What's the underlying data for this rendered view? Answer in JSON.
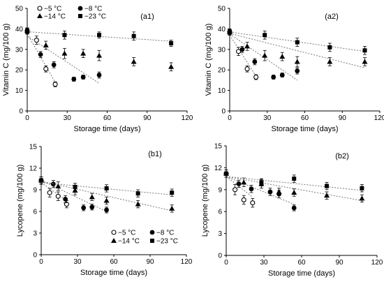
{
  "figure": {
    "panels": [
      {
        "label": "(a1)",
        "type": "scatter",
        "xlabel": "Storage time (days)",
        "ylabel": "Vitamin C (mg/100 g)",
        "xlim": [
          0,
          120
        ],
        "ylim": [
          0,
          50
        ],
        "xticks": [
          0,
          30,
          60,
          90,
          120
        ],
        "yticks": [
          0,
          10,
          20,
          30,
          40,
          50
        ],
        "show_legend": true,
        "legend_position": "top-left",
        "series": [
          {
            "name": "−5 °C",
            "marker": "open-circle",
            "x": [
              0,
              7,
              14,
              21
            ],
            "y": [
              39,
              34.5,
              20.5,
              13
            ],
            "err": [
              1.5,
              2,
              1.5,
              1.2
            ],
            "fit": [
              [
                0,
                37.6
              ],
              [
                21,
                14
              ]
            ]
          },
          {
            "name": "−8 °C",
            "marker": "filled-circle",
            "x": [
              0,
              10,
              20,
              35,
              42,
              54
            ],
            "y": [
              39,
              27.5,
              22.5,
              15.5,
              16.5,
              17.5
            ],
            "err": [
              1.2,
              1.5,
              1.5,
              1,
              1,
              1.5
            ],
            "fit": [
              [
                0,
                36.5
              ],
              [
                54,
                13.5
              ]
            ]
          },
          {
            "name": "−14 °C",
            "marker": "filled-triangle",
            "x": [
              0,
              14,
              28,
              42,
              54,
              80,
              108
            ],
            "y": [
              39,
              32,
              28,
              28,
              27,
              24,
              21.5
            ],
            "err": [
              1.5,
              2,
              2.5,
              2,
              2.5,
              2,
              2
            ]
          },
          {
            "name": "−23 °C",
            "marker": "filled-square",
            "x": [
              0,
              28,
              54,
              80,
              108
            ],
            "y": [
              39,
              37,
              37,
              36.5,
              33
            ],
            "err": [
              1.5,
              2,
              1.5,
              2,
              1.5
            ],
            "fit": [
              [
                0,
                38.6
              ],
              [
                108,
                34
              ]
            ]
          }
        ]
      },
      {
        "label": "(a2)",
        "type": "scatter",
        "xlabel": "Storage time (days)",
        "ylabel": "Vitamin C (mg/100 g)",
        "xlim": [
          0,
          120
        ],
        "ylim": [
          0,
          50
        ],
        "xticks": [
          0,
          30,
          60,
          90,
          120
        ],
        "yticks": [
          0,
          10,
          20,
          30,
          40,
          50
        ],
        "show_legend": false,
        "series": [
          {
            "name": "−5 °C",
            "marker": "open-circle",
            "x": [
              0,
              7,
              14,
              21
            ],
            "y": [
              38.5,
              29,
              20.5,
              16.5
            ],
            "err": [
              1.5,
              2,
              1.5,
              1.2
            ],
            "fit": [
              [
                0,
                37
              ],
              [
                21,
                17
              ]
            ]
          },
          {
            "name": "−8 °C",
            "marker": "filled-circle",
            "x": [
              0,
              10,
              20,
              35,
              42,
              54
            ],
            "y": [
              38.5,
              30,
              24,
              16.5,
              17.5,
              19.5
            ],
            "err": [
              1.2,
              1.5,
              1.5,
              1,
              1,
              1.5
            ],
            "fit": [
              [
                0,
                37.5
              ],
              [
                54,
                15
              ]
            ]
          },
          {
            "name": "−14 °C",
            "marker": "filled-triangle",
            "x": [
              0,
              14,
              28,
              42,
              54,
              80,
              108
            ],
            "y": [
              38.5,
              31.5,
              27,
              26.5,
              24,
              24,
              24
            ],
            "err": [
              1.5,
              2,
              2.5,
              2,
              2.5,
              2,
              2
            ],
            "fit": [
              [
                0,
                37.8
              ],
              [
                108,
                21
              ]
            ]
          },
          {
            "name": "−23 °C",
            "marker": "filled-square",
            "x": [
              0,
              28,
              54,
              80,
              108
            ],
            "y": [
              38.5,
              37,
              33.5,
              31,
              29.5
            ],
            "err": [
              1.5,
              2,
              2,
              2,
              2
            ],
            "fit": [
              [
                0,
                38.5
              ],
              [
                108,
                29
              ]
            ]
          }
        ]
      },
      {
        "label": "(b1)",
        "type": "scatter",
        "xlabel": "Storage time (days)",
        "ylabel": "Lycopene (mg/100 g)",
        "xlim": [
          0,
          120
        ],
        "ylim": [
          0,
          15
        ],
        "xticks": [
          0,
          30,
          60,
          90,
          120
        ],
        "yticks": [
          0,
          3,
          6,
          9,
          12,
          15
        ],
        "show_legend": true,
        "legend_position": "bottom-right",
        "series": [
          {
            "name": "−5 °C",
            "marker": "open-circle",
            "x": [
              0,
              7,
              14,
              21
            ],
            "y": [
              10.3,
              8.6,
              8.1,
              7
            ],
            "err": [
              0.5,
              0.6,
              0.6,
              0.5
            ],
            "fit": [
              [
                0,
                10
              ],
              [
                21,
                7.5
              ]
            ]
          },
          {
            "name": "−8 °C",
            "marker": "filled-circle",
            "x": [
              0,
              10,
              20,
              35,
              42,
              54
            ],
            "y": [
              10.3,
              9.8,
              7.7,
              6.5,
              6.6,
              6.2
            ],
            "err": [
              0.5,
              0.5,
              0.5,
              0.4,
              0.4,
              0.4
            ],
            "fit": [
              [
                0,
                10.3
              ],
              [
                54,
                6
              ]
            ]
          },
          {
            "name": "−14 °C",
            "marker": "filled-triangle",
            "x": [
              0,
              14,
              28,
              42,
              54,
              80,
              108
            ],
            "y": [
              10.3,
              9.5,
              8.9,
              8,
              7.5,
              7,
              6.4
            ],
            "err": [
              0.5,
              0.6,
              0.6,
              0.5,
              0.5,
              0.5,
              0.5
            ],
            "fit": [
              [
                0,
                10.2
              ],
              [
                108,
                6.1
              ]
            ]
          },
          {
            "name": "−23 °C",
            "marker": "filled-square",
            "x": [
              0,
              28,
              54,
              80,
              108
            ],
            "y": [
              10.3,
              9.4,
              9.2,
              8.5,
              8.6
            ],
            "err": [
              0.5,
              0.5,
              0.5,
              0.5,
              0.5
            ],
            "fit": [
              [
                0,
                10
              ],
              [
                108,
                8.3
              ]
            ]
          }
        ]
      },
      {
        "label": "(b2)",
        "type": "scatter",
        "xlabel": "Storage time (days)",
        "ylabel": "Lycopene (mg/100 g)",
        "xlim": [
          0,
          120
        ],
        "ylim": [
          0,
          15
        ],
        "xticks": [
          0,
          30,
          60,
          90,
          120
        ],
        "yticks": [
          0,
          3,
          6,
          9,
          12,
          15
        ],
        "show_legend": false,
        "series": [
          {
            "name": "−5 °C",
            "marker": "open-circle",
            "x": [
              0,
              7,
              14,
              21
            ],
            "y": [
              11.2,
              9,
              7.6,
              7.2
            ],
            "err": [
              0.5,
              0.7,
              0.6,
              0.6
            ],
            "fit": [
              [
                0,
                10.8
              ],
              [
                21,
                8
              ]
            ]
          },
          {
            "name": "−8 °C",
            "marker": "filled-circle",
            "x": [
              0,
              10,
              20,
              35,
              42,
              54
            ],
            "y": [
              11.2,
              9.8,
              9.1,
              8.7,
              8.4,
              6.5
            ],
            "err": [
              0.5,
              0.5,
              0.5,
              0.5,
              0.5,
              0.4
            ],
            "fit": [
              [
                0,
                10.8
              ],
              [
                54,
                7
              ]
            ]
          },
          {
            "name": "−14 °C",
            "marker": "filled-triangle",
            "x": [
              0,
              14,
              28,
              42,
              54,
              80,
              108
            ],
            "y": [
              11.2,
              10,
              9.8,
              8.7,
              8.6,
              8.2,
              7.8
            ],
            "err": [
              0.5,
              0.6,
              0.6,
              0.5,
              0.5,
              0.5,
              0.5
            ],
            "fit": [
              [
                0,
                10.8
              ],
              [
                108,
                7.5
              ]
            ]
          },
          {
            "name": "−23 °C",
            "marker": "filled-square",
            "x": [
              0,
              28,
              54,
              80,
              108
            ],
            "y": [
              11.2,
              10,
              10.5,
              9.5,
              9.2
            ],
            "err": [
              0.5,
              0.5,
              0.5,
              0.5,
              0.5
            ],
            "fit": [
              [
                0,
                10.8
              ],
              [
                108,
                8.9
              ]
            ]
          }
        ]
      }
    ]
  },
  "chart_data": [
    {
      "panel": "(a1)",
      "type": "scatter",
      "xlabel": "Storage time (days)",
      "ylabel": "Vitamin C (mg/100 g)",
      "xlim": [
        0,
        120
      ],
      "ylim": [
        0,
        50
      ],
      "series": [
        {
          "name": "−5 °C",
          "x": [
            0,
            7,
            14,
            21
          ],
          "y": [
            39,
            34.5,
            20.5,
            13
          ]
        },
        {
          "name": "−8 °C",
          "x": [
            0,
            10,
            20,
            35,
            42,
            54
          ],
          "y": [
            39,
            27.5,
            22.5,
            15.5,
            16.5,
            17.5
          ]
        },
        {
          "name": "−14 °C",
          "x": [
            0,
            14,
            28,
            42,
            54,
            80,
            108
          ],
          "y": [
            39,
            32,
            28,
            28,
            27,
            24,
            21.5
          ]
        },
        {
          "name": "−23 °C",
          "x": [
            0,
            28,
            54,
            80,
            108
          ],
          "y": [
            39,
            37,
            37,
            36.5,
            33
          ]
        }
      ]
    },
    {
      "panel": "(a2)",
      "type": "scatter",
      "xlabel": "Storage time (days)",
      "ylabel": "Vitamin C (mg/100 g)",
      "xlim": [
        0,
        120
      ],
      "ylim": [
        0,
        50
      ],
      "series": [
        {
          "name": "−5 °C",
          "x": [
            0,
            7,
            14,
            21
          ],
          "y": [
            38.5,
            29,
            20.5,
            16.5
          ]
        },
        {
          "name": "−8 °C",
          "x": [
            0,
            10,
            20,
            35,
            42,
            54
          ],
          "y": [
            38.5,
            30,
            24,
            16.5,
            17.5,
            19.5
          ]
        },
        {
          "name": "−14 °C",
          "x": [
            0,
            14,
            28,
            42,
            54,
            80,
            108
          ],
          "y": [
            38.5,
            31.5,
            27,
            26.5,
            24,
            24,
            24
          ]
        },
        {
          "name": "−23 °C",
          "x": [
            0,
            28,
            54,
            80,
            108
          ],
          "y": [
            38.5,
            37,
            33.5,
            31,
            29.5
          ]
        }
      ]
    },
    {
      "panel": "(b1)",
      "type": "scatter",
      "xlabel": "Storage time (days)",
      "ylabel": "Lycopene (mg/100 g)",
      "xlim": [
        0,
        120
      ],
      "ylim": [
        0,
        15
      ],
      "series": [
        {
          "name": "−5 °C",
          "x": [
            0,
            7,
            14,
            21
          ],
          "y": [
            10.3,
            8.6,
            8.1,
            7
          ]
        },
        {
          "name": "−8 °C",
          "x": [
            0,
            10,
            20,
            35,
            42,
            54
          ],
          "y": [
            10.3,
            9.8,
            7.7,
            6.5,
            6.6,
            6.2
          ]
        },
        {
          "name": "−14 °C",
          "x": [
            0,
            14,
            28,
            42,
            54,
            80,
            108
          ],
          "y": [
            10.3,
            9.5,
            8.9,
            8,
            7.5,
            7,
            6.4
          ]
        },
        {
          "name": "−23 °C",
          "x": [
            0,
            28,
            54,
            80,
            108
          ],
          "y": [
            10.3,
            9.4,
            9.2,
            8.5,
            8.6
          ]
        }
      ]
    },
    {
      "panel": "(b2)",
      "type": "scatter",
      "xlabel": "Storage time (days)",
      "ylabel": "Lycopene (mg/100 g)",
      "xlim": [
        0,
        120
      ],
      "ylim": [
        0,
        15
      ],
      "series": [
        {
          "name": "−5 °C",
          "x": [
            0,
            7,
            14,
            21
          ],
          "y": [
            11.2,
            9,
            7.6,
            7.2
          ]
        },
        {
          "name": "−8 °C",
          "x": [
            0,
            10,
            20,
            35,
            42,
            54
          ],
          "y": [
            11.2,
            9.8,
            9.1,
            8.7,
            8.4,
            6.5
          ]
        },
        {
          "name": "−14 °C",
          "x": [
            0,
            14,
            28,
            42,
            54,
            80,
            108
          ],
          "y": [
            11.2,
            10,
            9.8,
            8.7,
            8.6,
            8.2,
            7.8
          ]
        },
        {
          "name": "−23 °C",
          "x": [
            0,
            28,
            54,
            80,
            108
          ],
          "y": [
            11.2,
            10,
            10.5,
            9.5,
            9.2
          ]
        }
      ]
    }
  ]
}
